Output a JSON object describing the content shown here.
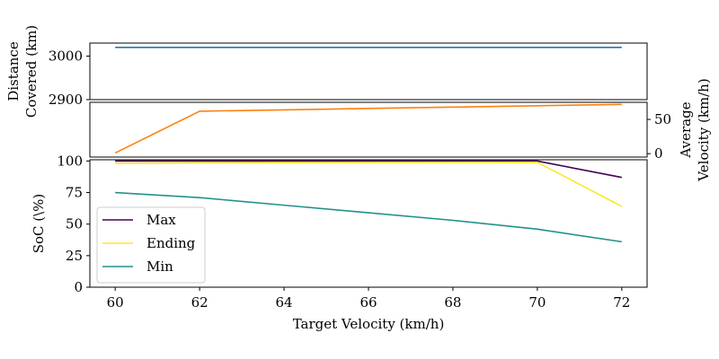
{
  "chart_data": [
    {
      "type": "line",
      "panel": "distance",
      "ylabel_lines": [
        "Distance",
        "Covered (km)"
      ],
      "ylim": [
        2900,
        3030
      ],
      "yticks": [
        2900,
        3000
      ],
      "xlim": [
        59.4,
        72.6
      ],
      "series": [
        {
          "x": [
            60,
            62,
            64,
            66,
            68,
            70,
            72
          ],
          "y": [
            3020,
            3020,
            3020,
            3020,
            3020,
            3020,
            3020
          ],
          "color": "#1f77b4"
        }
      ]
    },
    {
      "type": "line",
      "panel": "velocity",
      "ylabel_lines": [
        "Average",
        "Velocity (km/h)"
      ],
      "ylabel_side": "right",
      "ylim": [
        -5,
        75
      ],
      "yticks": [
        0,
        50
      ],
      "xlim": [
        59.4,
        72.6
      ],
      "series": [
        {
          "x": [
            60,
            62,
            64,
            66,
            68,
            70,
            72
          ],
          "y": [
            1,
            62,
            64,
            66,
            68,
            70,
            72
          ],
          "color": "#ff7f0e"
        }
      ]
    },
    {
      "type": "line",
      "panel": "soc",
      "ylabel": "SoC (\\%)",
      "xlabel": "Target Velocity (km/h)",
      "ylim": [
        0,
        101
      ],
      "yticks": [
        0,
        25,
        50,
        75,
        100
      ],
      "xlim": [
        59.4,
        72.6
      ],
      "xticks": [
        60,
        62,
        64,
        66,
        68,
        70,
        72
      ],
      "legend_position": "lower-left",
      "series": [
        {
          "name": "Max",
          "x": [
            60,
            62,
            64,
            66,
            68,
            70,
            72
          ],
          "y": [
            100,
            100,
            100,
            100,
            100,
            100,
            87
          ],
          "color": "#440154"
        },
        {
          "name": "Ending",
          "x": [
            60,
            62,
            64,
            66,
            68,
            70,
            72
          ],
          "y": [
            98,
            98.5,
            98.7,
            98.8,
            98.9,
            99,
            64
          ],
          "color": "#fde725"
        },
        {
          "name": "Min",
          "x": [
            60,
            62,
            64,
            66,
            68,
            70,
            72
          ],
          "y": [
            75,
            71,
            65,
            59,
            53,
            46,
            36
          ],
          "color": "#21918c"
        }
      ]
    }
  ]
}
